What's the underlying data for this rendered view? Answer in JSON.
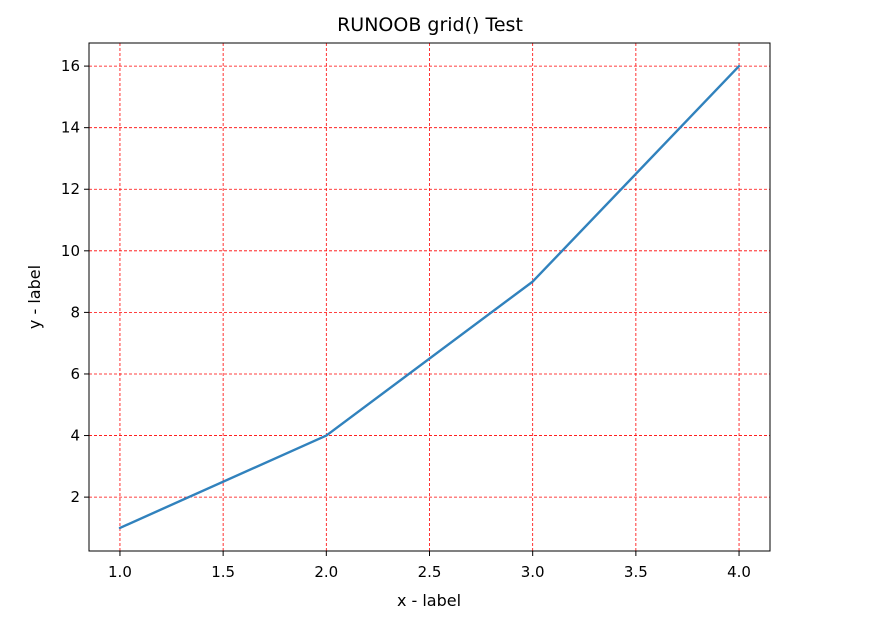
{
  "chart_data": {
    "type": "line",
    "title": "RUNOOB grid() Test",
    "xlabel": "x - label",
    "ylabel": "y - label",
    "x": [
      1.0,
      2.0,
      3.0,
      4.0
    ],
    "series": [
      {
        "values": [
          1,
          4,
          9,
          16
        ],
        "color": "#3182bd"
      }
    ],
    "xlim": [
      0.85,
      4.15
    ],
    "ylim": [
      0.25,
      16.75
    ],
    "xticks": [
      1.0,
      1.5,
      2.0,
      2.5,
      3.0,
      3.5,
      4.0
    ],
    "xtick_labels": [
      "1.0",
      "1.5",
      "2.0",
      "2.5",
      "3.0",
      "3.5",
      "4.0"
    ],
    "yticks": [
      2,
      4,
      6,
      8,
      10,
      12,
      14,
      16
    ],
    "ytick_labels": [
      "2",
      "4",
      "6",
      "8",
      "10",
      "12",
      "14",
      "16"
    ],
    "grid": {
      "show": true,
      "color": "#ff0000",
      "style": "dashed"
    }
  }
}
